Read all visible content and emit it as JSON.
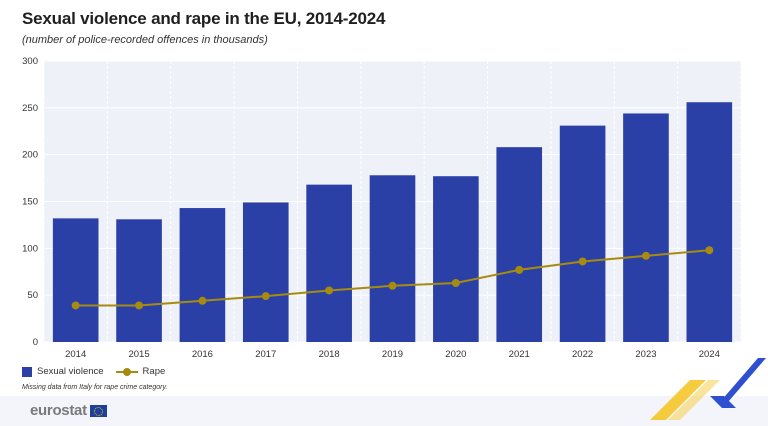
{
  "title": "Sexual violence and rape in the EU, 2014-2024",
  "subtitle": "(number of police-recorded offences in thousands)",
  "note": "Missing data from Italy for rape crime category.",
  "logo_text": "eurostat",
  "colors": {
    "bar": "#2a40a6",
    "line": "#a68b10",
    "plot_bg": "#eef1f8",
    "grid": "#ffffff",
    "footer_bg": "#f3f5fa",
    "accent_yellow": "#f4c21b",
    "accent_blue": "#2f4fd1"
  },
  "chart_data": {
    "type": "bar",
    "categories": [
      "2014",
      "2015",
      "2016",
      "2017",
      "2018",
      "2019",
      "2020",
      "2021",
      "2022",
      "2023",
      "2024"
    ],
    "series": [
      {
        "name": "Sexual violence",
        "type": "bar",
        "values": [
          132,
          131,
          143,
          149,
          168,
          178,
          177,
          208,
          231,
          244,
          256
        ]
      },
      {
        "name": "Rape",
        "type": "line",
        "values": [
          39,
          39,
          44,
          49,
          55,
          60,
          63,
          77,
          86,
          92,
          98
        ]
      }
    ],
    "ylim": [
      0,
      300
    ],
    "yticks": [
      0,
      50,
      100,
      150,
      200,
      250,
      300
    ],
    "xlabel": "",
    "ylabel": "",
    "grid": true,
    "legend": "bottom-left"
  }
}
